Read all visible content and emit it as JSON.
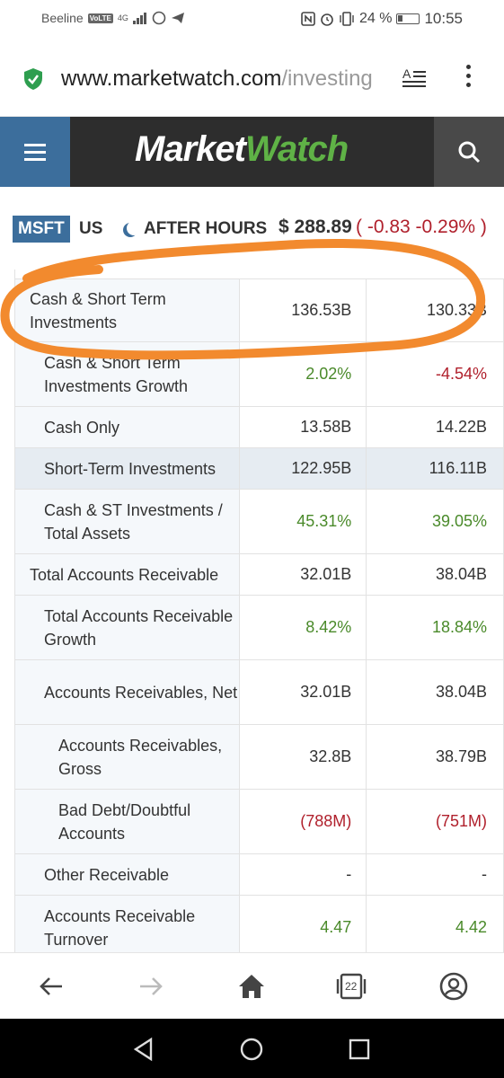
{
  "status_bar": {
    "carrier": "Beeline",
    "volte_badge": "VoLTE",
    "network": "4G",
    "battery": "24 %",
    "time": "10:55"
  },
  "browser": {
    "url_main": "www.marketwatch.com",
    "url_path": "/investing"
  },
  "header": {
    "logo_part1": "Market",
    "logo_part2": "Watch"
  },
  "ticker": {
    "symbol": "MSFT",
    "exchange": "US",
    "session": "AFTER HOURS",
    "price": "$ 288.89",
    "change": "( -0.83  -0.29% )"
  },
  "table": {
    "rows": [
      {
        "label": "Cash & Short Term Investments",
        "v1": "136.53B",
        "v2": "130.33B",
        "level": 0,
        "tone": ""
      },
      {
        "label": "Cash & Short Term Investments Growth",
        "v1": "2.02%",
        "v2": "-4.54%",
        "level": 1,
        "tone1": "pos",
        "tone2": "neg"
      },
      {
        "label": "Cash Only",
        "v1": "13.58B",
        "v2": "14.22B",
        "level": 1
      },
      {
        "label": "Short-Term Investments",
        "v1": "122.95B",
        "v2": "116.11B",
        "level": 1,
        "highlight": true
      },
      {
        "label": "Cash & ST Investments / Total Assets",
        "v1": "45.31%",
        "v2": "39.05%",
        "level": 1,
        "tone1": "pos",
        "tone2": "pos"
      },
      {
        "label": "Total Accounts Receivable",
        "v1": "32.01B",
        "v2": "38.04B",
        "level": 0
      },
      {
        "label": "Total Accounts Receivable Growth",
        "v1": "8.42%",
        "v2": "18.84%",
        "level": 1,
        "tone1": "pos",
        "tone2": "pos"
      },
      {
        "label": "Accounts Receivables, Net",
        "v1": "32.01B",
        "v2": "38.04B",
        "level": 1
      },
      {
        "label": "Accounts Receivables, Gross",
        "v1": "32.8B",
        "v2": "38.79B",
        "level": 2
      },
      {
        "label": "Bad Debt/Doubtful Accounts",
        "v1": "(788M)",
        "v2": "(751M)",
        "level": 2,
        "tone1": "neg",
        "tone2": "neg"
      },
      {
        "label": "Other Receivable",
        "v1": "-",
        "v2": "-",
        "level": 1
      },
      {
        "label": "Accounts Receivable Turnover",
        "v1": "4.47",
        "v2": "4.42",
        "level": 1,
        "tone1": "pos",
        "tone2": "pos"
      }
    ]
  },
  "bottom_nav": {
    "tab_count": "22"
  },
  "colors": {
    "brand_blue": "#3c6e9c",
    "header_dark": "#2d2d2d",
    "positive": "#4a8a2a",
    "negative": "#b0202c",
    "annotation": "#f28a2e"
  }
}
